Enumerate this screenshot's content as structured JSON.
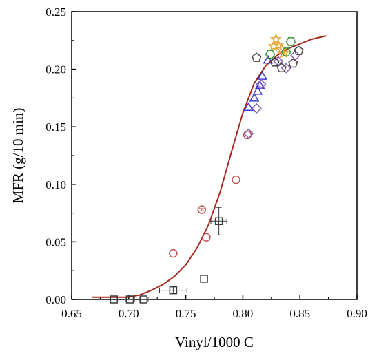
{
  "chart_data": {
    "type": "scatter",
    "title": "",
    "xlabel": "Vinyl/1000 C",
    "ylabel": "MFR (g/10 min)",
    "xlim": [
      0.65,
      0.9
    ],
    "ylim": [
      0.0,
      0.25
    ],
    "x_ticks": [
      "0.65",
      "0.70",
      "0.75",
      "0.80",
      "0.85",
      "0.90"
    ],
    "y_ticks": [
      "0.00",
      "0.05",
      "0.10",
      "0.15",
      "0.20",
      "0.25"
    ],
    "grid": false,
    "legend": "none",
    "fit_curve": {
      "color": "#a8281e",
      "x": [
        0.668,
        0.69,
        0.7,
        0.71,
        0.72,
        0.73,
        0.74,
        0.75,
        0.76,
        0.77,
        0.78,
        0.79,
        0.8,
        0.81,
        0.82,
        0.83,
        0.84,
        0.85,
        0.86,
        0.873
      ],
      "y": [
        0.002,
        0.002,
        0.002,
        0.004,
        0.008,
        0.013,
        0.02,
        0.03,
        0.045,
        0.065,
        0.093,
        0.128,
        0.162,
        0.188,
        0.203,
        0.212,
        0.218,
        0.222,
        0.226,
        0.229
      ]
    },
    "series": [
      {
        "marker": "square",
        "color": "#3a3a3a",
        "x": [
          0.687,
          0.701,
          0.713,
          0.739,
          0.766,
          0.779
        ],
        "y": [
          0.0,
          0.0,
          0.0,
          0.008,
          0.018,
          0.068
        ],
        "xerr": [
          0.0,
          0.004,
          0.004,
          0.012,
          0.0,
          0.007
        ],
        "yerr": [
          0.0,
          0.0,
          0.0,
          0.003,
          0.0,
          0.012
        ]
      },
      {
        "marker": "circle",
        "color": "#c0504d",
        "x": [
          0.739,
          0.764,
          0.768,
          0.794,
          0.804
        ],
        "y": [
          0.04,
          0.078,
          0.054,
          0.104,
          0.143
        ],
        "xerr": [
          0,
          0,
          0,
          0,
          0
        ],
        "yerr": [
          0,
          0.001,
          0,
          0,
          0
        ]
      },
      {
        "marker": "triangle",
        "color": "#3b3bd6",
        "x": [
          0.805,
          0.81,
          0.813,
          0.815,
          0.817,
          0.822
        ],
        "y": [
          0.167,
          0.175,
          0.181,
          0.186,
          0.194,
          0.208
        ],
        "xerr": [
          0,
          0,
          0,
          0,
          0,
          0
        ],
        "yerr": [
          0,
          0,
          0,
          0,
          0,
          0
        ]
      },
      {
        "marker": "diamond",
        "color": "#8a5fb5",
        "x": [
          0.805,
          0.812,
          0.816,
          0.831,
          0.838,
          0.846
        ],
        "y": [
          0.144,
          0.166,
          0.187,
          0.207,
          0.201,
          0.212
        ],
        "xerr": [
          0,
          0,
          0,
          0,
          0,
          0
        ],
        "yerr": [
          0,
          0,
          0,
          0,
          0,
          0
        ]
      },
      {
        "marker": "pentagon",
        "color": "#444444",
        "x": [
          0.812,
          0.828,
          0.834,
          0.844,
          0.849
        ],
        "y": [
          0.21,
          0.206,
          0.201,
          0.205,
          0.216
        ],
        "xerr": [
          0,
          0,
          0,
          0,
          0
        ],
        "yerr": [
          0,
          0,
          0,
          0,
          0
        ]
      },
      {
        "marker": "star",
        "color": "#e6a532",
        "x": [
          0.827,
          0.829,
          0.831,
          0.834,
          0.836
        ],
        "y": [
          0.22,
          0.226,
          0.221,
          0.217,
          0.214
        ],
        "xerr": [
          0,
          0,
          0,
          0,
          0
        ],
        "yerr": [
          0,
          0,
          0,
          0,
          0
        ]
      },
      {
        "marker": "hexagon",
        "color": "#3f9a3f",
        "x": [
          0.824,
          0.838,
          0.842
        ],
        "y": [
          0.213,
          0.215,
          0.224
        ],
        "xerr": [
          0,
          0,
          0
        ],
        "yerr": [
          0,
          0,
          0
        ]
      }
    ]
  }
}
